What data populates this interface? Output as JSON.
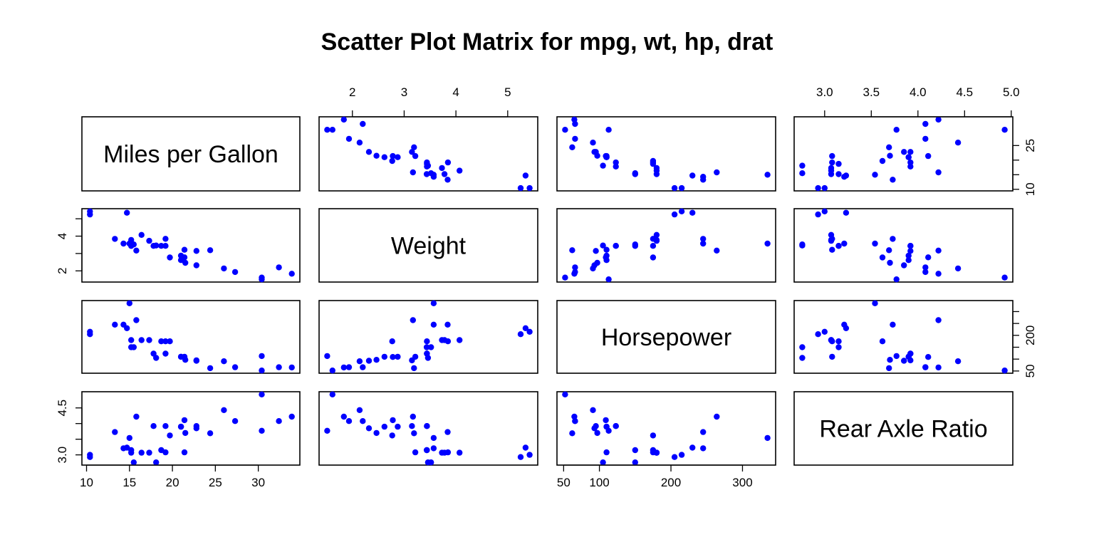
{
  "chart_data": {
    "type": "scatter",
    "title": "Scatter Plot Matrix for mpg, wt, hp, drat",
    "point_color": "#0000FF",
    "variables": [
      {
        "key": "mpg",
        "label": "Miles per Gallon",
        "range": [
          10.4,
          33.9
        ],
        "ticks": [
          10,
          15,
          20,
          25,
          30
        ],
        "axis_ticks_right": [
          10,
          15,
          20,
          25
        ],
        "axis_labels_right": [
          "10",
          "",
          "",
          "25"
        ]
      },
      {
        "key": "wt",
        "label": "Weight",
        "range": [
          1.513,
          5.424
        ],
        "ticks": [
          2,
          3,
          4,
          5
        ],
        "axis_ticks_left": [
          2,
          3,
          4,
          5
        ],
        "axis_labels_left": [
          "2",
          "",
          "4",
          ""
        ]
      },
      {
        "key": "hp",
        "label": "Horsepower",
        "range": [
          52,
          335
        ],
        "ticks": [
          50,
          100,
          200,
          300
        ],
        "tick_labels": [
          "50",
          "100",
          "200",
          "300"
        ],
        "axis_ticks_right": [
          50,
          100,
          150,
          200,
          250,
          300
        ],
        "axis_labels_right": [
          "50",
          "",
          "",
          "200",
          "",
          ""
        ]
      },
      {
        "key": "drat",
        "label": "Rear Axle Ratio",
        "range": [
          2.76,
          4.93
        ],
        "ticks": [
          3.0,
          3.5,
          4.0,
          4.5,
          5.0
        ],
        "tick_labels": [
          "3.0",
          "3.5",
          "4.0",
          "4.5",
          "5.0"
        ],
        "axis_ticks_left": [
          3.0,
          3.5,
          4.0,
          4.5
        ],
        "axis_labels_left": [
          "3.0",
          "",
          "",
          "4.5"
        ]
      }
    ],
    "data": {
      "mpg": [
        21.0,
        21.0,
        22.8,
        21.4,
        18.7,
        18.1,
        14.3,
        24.4,
        22.8,
        19.2,
        17.8,
        16.4,
        17.3,
        15.2,
        10.4,
        10.4,
        14.7,
        32.4,
        30.4,
        33.9,
        21.5,
        15.5,
        15.2,
        13.3,
        19.2,
        27.3,
        26.0,
        30.4,
        15.8,
        19.7,
        15.0,
        21.4
      ],
      "wt": [
        2.62,
        2.875,
        2.32,
        3.215,
        3.44,
        3.46,
        3.57,
        3.19,
        3.15,
        3.44,
        3.44,
        4.07,
        3.73,
        3.78,
        5.25,
        5.424,
        5.345,
        2.2,
        1.615,
        1.835,
        2.465,
        3.52,
        3.435,
        3.84,
        3.845,
        1.935,
        2.14,
        1.513,
        3.17,
        2.77,
        3.57,
        2.78
      ],
      "hp": [
        110,
        110,
        93,
        110,
        175,
        105,
        245,
        62,
        95,
        123,
        123,
        180,
        180,
        180,
        205,
        215,
        230,
        66,
        52,
        65,
        97,
        150,
        150,
        245,
        175,
        66,
        91,
        113,
        264,
        175,
        335,
        109
      ],
      "drat": [
        3.9,
        3.9,
        3.85,
        3.08,
        3.15,
        2.76,
        3.21,
        3.69,
        3.92,
        3.92,
        3.92,
        3.07,
        3.07,
        3.07,
        2.93,
        3.0,
        3.23,
        4.08,
        4.93,
        4.22,
        3.7,
        2.76,
        3.15,
        3.73,
        3.08,
        4.08,
        4.43,
        3.77,
        4.22,
        3.62,
        3.54,
        4.11
      ]
    }
  }
}
